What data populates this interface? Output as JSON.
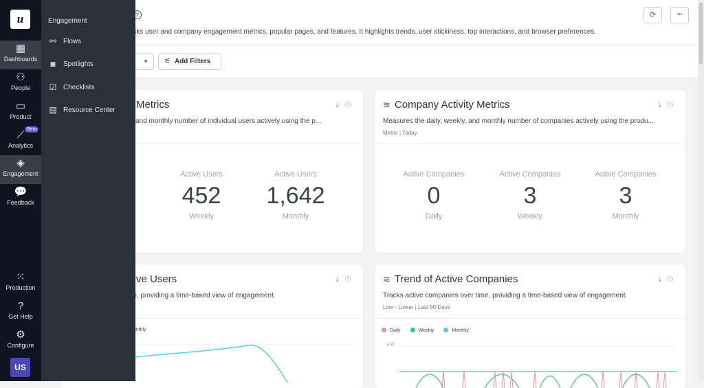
{
  "rail": {
    "logo": "u",
    "items": [
      {
        "label": "Dashboards",
        "icon": "dashboard-icon",
        "active": true
      },
      {
        "label": "People",
        "icon": "people-icon"
      },
      {
        "label": "Product",
        "icon": "product-icon"
      },
      {
        "label": "Analytics",
        "icon": "analytics-icon",
        "badge": "Beta"
      },
      {
        "label": "Engagement",
        "icon": "layers-icon",
        "active": true
      },
      {
        "label": "Feedback",
        "icon": "chat-icon"
      }
    ],
    "bottom": [
      {
        "label": "Production",
        "icon": "grid-icon"
      },
      {
        "label": "Get Help",
        "icon": "help-icon"
      },
      {
        "label": "Configure",
        "icon": "gear-icon"
      }
    ],
    "avatar": "US"
  },
  "flyout": {
    "title": "Engagement",
    "items": [
      {
        "label": "Flows",
        "icon": "flows-icon"
      },
      {
        "label": "Spotlights",
        "icon": "spotlight-icon"
      },
      {
        "label": "Checklists",
        "icon": "checklist-icon"
      },
      {
        "label": "Resource Center",
        "icon": "book-icon"
      }
    ]
  },
  "header": {
    "description": "rd tracks user and company engagement metrics, popular pages, and features. It highlights trends, user stickiness, top interactions, and browser preferences.",
    "refresh": "⟳",
    "more": "•••"
  },
  "filters": {
    "add_filters": "Add Filters"
  },
  "cards": [
    {
      "title": "Metrics",
      "description": "kly, and monthly number of individual users actively using the p...",
      "metrics": [
        {
          "label": "Active Users",
          "value": "452",
          "period": "Weekly"
        },
        {
          "label": "Active Users",
          "value": "1,642",
          "period": "Monthly"
        }
      ]
    },
    {
      "title": "Company Activity Metrics",
      "description": "Measures the daily, weekly, and monthly number of companies actively using the produ...",
      "meta": "Metric | Today",
      "metrics": [
        {
          "label": "Active Companies",
          "value": "0",
          "period": "Daily"
        },
        {
          "label": "Active Companies",
          "value": "3",
          "period": "Weekly"
        },
        {
          "label": "Active Companies",
          "value": "3",
          "period": "Monthly"
        }
      ]
    },
    {
      "title": "ve Users",
      "description": "time, providing a time-based view of engagement.",
      "legend": [
        "Monthly"
      ]
    },
    {
      "title": "Trend of Active Companies",
      "description": "Tracks active companies over time, providing a time-based view of engagement.",
      "meta": "Line - Linear | Last 90 Days",
      "legend": [
        "Daily",
        "Weekly",
        "Monthly"
      ],
      "ytick": "4.0"
    }
  ],
  "colors": {
    "daily": "#f28ba0",
    "weekly": "#3cc47c",
    "monthly": "#5bc8ea",
    "accent": "#5b5bd6"
  }
}
